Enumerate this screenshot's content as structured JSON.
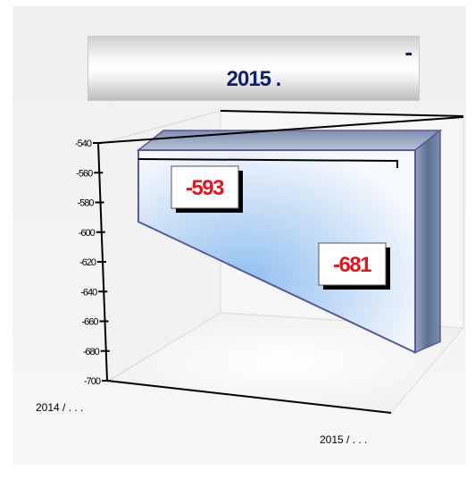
{
  "title": {
    "dash": "-",
    "main": "2015 ."
  },
  "chart_data": {
    "type": "area",
    "title": "2015 .",
    "categories": [
      "2014 / . . .",
      "2015 / . . ."
    ],
    "series": [
      {
        "values": [
          -593,
          -681
        ]
      }
    ],
    "data_labels": [
      "-593",
      "-681"
    ],
    "ylim": [
      -700,
      -540
    ],
    "yticks": [
      "-540",
      "-560",
      "-580",
      "-600",
      "-620",
      "-640",
      "-660",
      "-680",
      "-700"
    ],
    "grid": false,
    "legend": "none",
    "colors": {
      "area": "#a9cdf2",
      "area_edge": "#5a5a9a",
      "label_text": "#e3151a",
      "title_text": "#11206b"
    }
  }
}
